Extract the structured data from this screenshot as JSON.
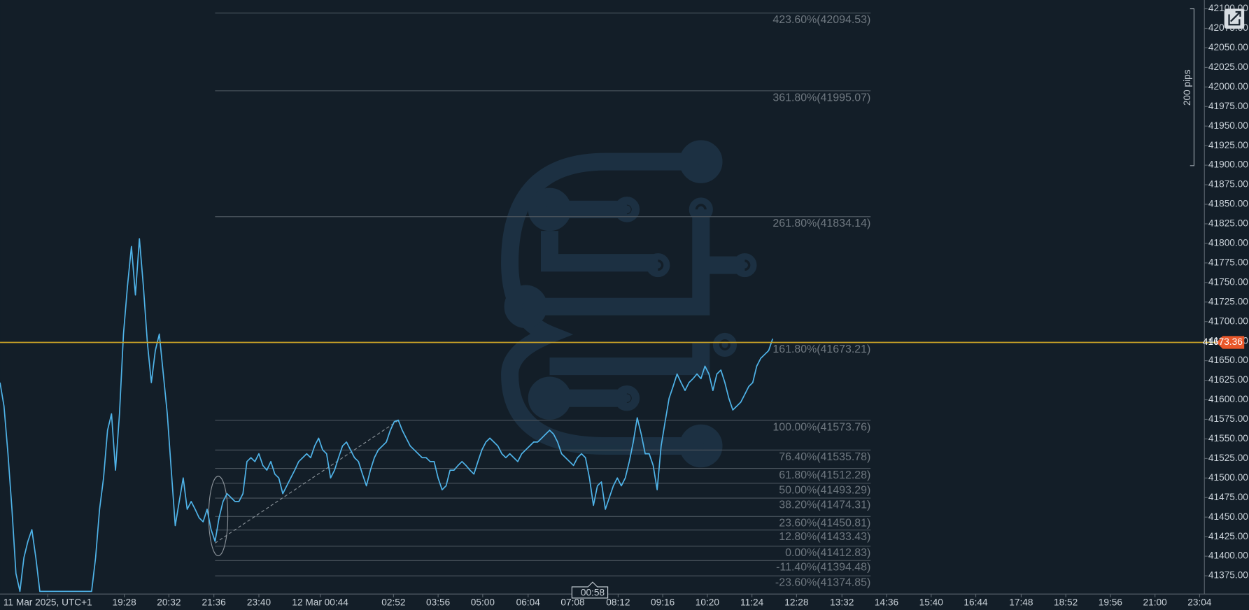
{
  "chart_data": {
    "type": "line",
    "xlim": [
      0,
      302.4
    ],
    "ylim": [
      41352.6,
      42111.2
    ],
    "xticks": [
      {
        "value": 12,
        "label": "11 Mar 2025, UTC+1"
      },
      {
        "value": 31.2,
        "label": "19:28"
      },
      {
        "value": 42.4,
        "label": "20:32"
      },
      {
        "value": 53.7,
        "label": "21:36"
      },
      {
        "value": 65.0,
        "label": "23:40"
      },
      {
        "value": 80.4,
        "label": "12 Mar 00:44"
      },
      {
        "value": 98.8,
        "label": "02:52"
      },
      {
        "value": 110.0,
        "label": "03:56"
      },
      {
        "value": 121.2,
        "label": "05:00"
      },
      {
        "value": 132.6,
        "label": "06:04"
      },
      {
        "value": 143.8,
        "label": "07:08"
      },
      {
        "value": 155.2,
        "label": "08:12"
      },
      {
        "value": 166.4,
        "label": "09:16"
      },
      {
        "value": 177.6,
        "label": "10:20"
      },
      {
        "value": 188.8,
        "label": "11:24"
      },
      {
        "value": 200.0,
        "label": "12:28"
      },
      {
        "value": 211.4,
        "label": "13:32"
      },
      {
        "value": 222.6,
        "label": "14:36"
      },
      {
        "value": 233.8,
        "label": "15:40"
      },
      {
        "value": 245.0,
        "label": "16:44"
      },
      {
        "value": 256.4,
        "label": "17:48"
      },
      {
        "value": 267.6,
        "label": "18:52"
      },
      {
        "value": 278.8,
        "label": "19:56"
      },
      {
        "value": 290.0,
        "label": "21:00"
      },
      {
        "value": 301.2,
        "label": "23:04"
      }
    ],
    "yticks": [
      {
        "value": 42100,
        "label": "42100.00"
      },
      {
        "value": 42075,
        "label": "42075.00"
      },
      {
        "value": 42050,
        "label": "42050.00"
      },
      {
        "value": 42025,
        "label": "42025.00"
      },
      {
        "value": 42000,
        "label": "42000.00"
      },
      {
        "value": 41975,
        "label": "41975.00"
      },
      {
        "value": 41950,
        "label": "41950.00"
      },
      {
        "value": 41925,
        "label": "41925.00"
      },
      {
        "value": 41900,
        "label": "41900.00"
      },
      {
        "value": 41875,
        "label": "41875.00"
      },
      {
        "value": 41850,
        "label": "41850.00"
      },
      {
        "value": 41825,
        "label": "41825.00"
      },
      {
        "value": 41800,
        "label": "41800.00"
      },
      {
        "value": 41775,
        "label": "41775.00"
      },
      {
        "value": 41750,
        "label": "41750.00"
      },
      {
        "value": 41725,
        "label": "41725.00"
      },
      {
        "value": 41700,
        "label": "41700.00"
      },
      {
        "value": 41675,
        "label": "41675.00"
      },
      {
        "value": 41650,
        "label": "41650.00"
      },
      {
        "value": 41625,
        "label": "41625.00"
      },
      {
        "value": 41600,
        "label": "41600.00"
      },
      {
        "value": 41575,
        "label": "41575.00"
      },
      {
        "value": 41550,
        "label": "41550.00"
      },
      {
        "value": 41525,
        "label": "41525.00"
      },
      {
        "value": 41500,
        "label": "41500.00"
      },
      {
        "value": 41475,
        "label": "41475.00"
      },
      {
        "value": 41450,
        "label": "41450.00"
      },
      {
        "value": 41425,
        "label": "41425.00"
      },
      {
        "value": 41400,
        "label": "41400.00"
      },
      {
        "value": 41375,
        "label": "41375.00"
      }
    ],
    "series": [
      {
        "color": "#4fb3e8",
        "values": [
          41622,
          41592,
          41531,
          41460,
          41378,
          41355,
          41398,
          41419,
          41434,
          41398,
          41355,
          41355,
          41355,
          41355,
          41355,
          41355,
          41355,
          41355,
          41355,
          41355,
          41355,
          41355,
          41355,
          41355,
          41398,
          41460,
          41500,
          41561,
          41582,
          41510,
          41582,
          41684,
          41745,
          41796,
          41734,
          41806,
          41745,
          41673,
          41622,
          41663,
          41684,
          41633,
          41582,
          41510,
          41439,
          41470,
          41500,
          41460,
          41470,
          41460,
          41449,
          41444,
          41460,
          41434,
          41419,
          41449,
          41470,
          41480,
          41475,
          41470,
          41470,
          41480,
          41521,
          41526,
          41521,
          41531,
          41516,
          41510,
          41521,
          41505,
          41500,
          41480,
          41490,
          41500,
          41510,
          41521,
          41526,
          41531,
          41526,
          41541,
          41551,
          41536,
          41531,
          41500,
          41510,
          41526,
          41541,
          41546,
          41536,
          41526,
          41521,
          41505,
          41490,
          41510,
          41526,
          41536,
          41541,
          41546,
          41561,
          41572,
          41574,
          41561,
          41551,
          41541,
          41536,
          41531,
          41526,
          41526,
          41521,
          41521,
          41500,
          41485,
          41490,
          41510,
          41510,
          41516,
          41521,
          41516,
          41510,
          41505,
          41521,
          41536,
          41546,
          41551,
          41546,
          41541,
          41531,
          41526,
          41531,
          41526,
          41521,
          41531,
          41536,
          41541,
          41546,
          41546,
          41551,
          41556,
          41561,
          41556,
          41546,
          41531,
          41526,
          41521,
          41516,
          41526,
          41531,
          41526,
          41500,
          41465,
          41490,
          41495,
          41460,
          41475,
          41490,
          41500,
          41490,
          41500,
          41521,
          41546,
          41577,
          41556,
          41531,
          41531,
          41516,
          41485,
          41541,
          41572,
          41602,
          41617,
          41633,
          41622,
          41612,
          41622,
          41627,
          41633,
          41627,
          41643,
          41633,
          41612,
          41633,
          41638,
          41622,
          41602,
          41587,
          41592,
          41597,
          41607,
          41617,
          41622,
          41643,
          41653,
          41658,
          41663,
          41678
        ]
      }
    ],
    "current_price": 41673.36,
    "fibonacci": [
      {
        "label": "423.60%(42094.53)",
        "value": 42094.53
      },
      {
        "label": "361.80%(41995.07)",
        "value": 41995.07
      },
      {
        "label": "261.80%(41834.14)",
        "value": 41834.14
      },
      {
        "label": "161.80%(41673.21)",
        "value": 41673.21
      },
      {
        "label": "100.00%(41573.76)",
        "value": 41573.76
      },
      {
        "label": "76.40%(41535.78)",
        "value": 41535.78
      },
      {
        "label": "61.80%(41512.28)",
        "value": 41512.28
      },
      {
        "label": "50.00%(41493.29)",
        "value": 41493.29
      },
      {
        "label": "38.20%(41474.31)",
        "value": 41474.31
      },
      {
        "label": "23.60%(41450.81)",
        "value": 41450.81
      },
      {
        "label": "12.80%(41433.43)",
        "value": 41433.43
      },
      {
        "label": "0.00%(41412.83)",
        "value": 41412.83
      },
      {
        "label": "-11.40%(41394.48)",
        "value": 41394.48
      },
      {
        "label": "-23.60%(41374.85)",
        "value": 41374.85
      }
    ],
    "countdown": "00:58",
    "range_label": "200 pips"
  }
}
